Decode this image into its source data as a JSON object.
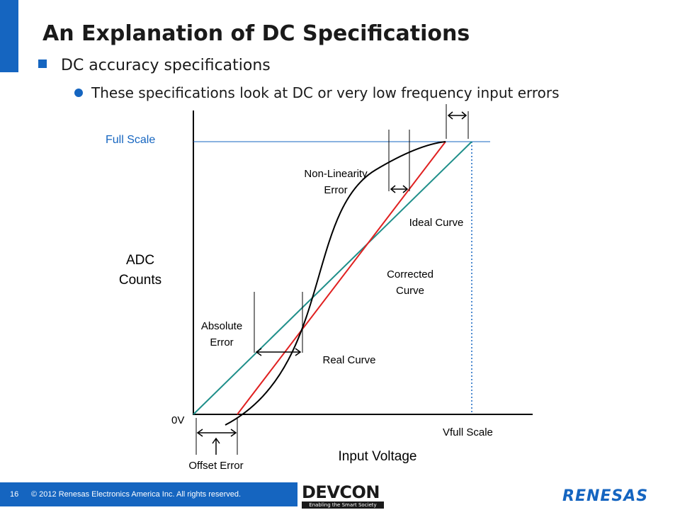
{
  "slide": {
    "title": "An Explanation of DC Specifications",
    "bullet_1": "DC accuracy specifications",
    "bullet_2": "These specifications look at DC or very low frequency input errors"
  },
  "diagram": {
    "labels": {
      "full_scale": "Full Scale",
      "adc_counts_line1": "ADC",
      "adc_counts_line2": "Counts",
      "zero_v": "0V",
      "vfull_scale": "Vfull Scale",
      "input_voltage": "Input Voltage",
      "offset_error": "Offset Error",
      "absolute_error_line1": "Absolute",
      "absolute_error_line2": "Error",
      "real_curve": "Real Curve",
      "corrected_curve_line1": "Corrected",
      "corrected_curve_line2": "Curve",
      "ideal_curve": "Ideal Curve",
      "non_linearity_line1": "Non-Linearity",
      "non_linearity_line2": "Error"
    },
    "colors": {
      "ideal": "#1f8f8a",
      "corrected": "#e02020",
      "real": "#000000",
      "full_scale_line": "#1565c0",
      "full_scale_text": "#1565c0"
    }
  },
  "footer": {
    "page_number": "16",
    "copyright": "© 2012 Renesas Electronics America Inc. All rights reserved.",
    "devcon_logo": "DEVCON",
    "devcon_tagline": "Enabling the Smart Society",
    "renesas_logo": "RENESAS"
  },
  "theme": {
    "accent": "#1565c0"
  }
}
